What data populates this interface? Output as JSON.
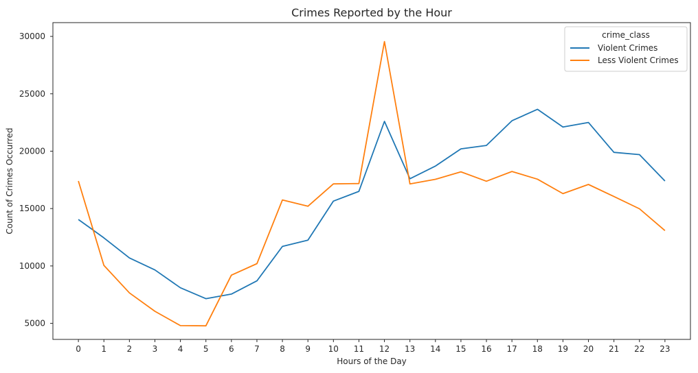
{
  "chart_data": {
    "type": "line",
    "title": "Crimes Reported by the Hour",
    "xlabel": "Hours of the Day",
    "ylabel": "Count of Crimes Occurred",
    "x": [
      0,
      1,
      2,
      3,
      4,
      5,
      6,
      7,
      8,
      9,
      10,
      11,
      12,
      13,
      14,
      15,
      16,
      17,
      18,
      19,
      20,
      21,
      22,
      23
    ],
    "xlim": [
      -1,
      24
    ],
    "ylim": [
      3600,
      31200
    ],
    "yticks": [
      5000,
      10000,
      15000,
      20000,
      25000,
      30000
    ],
    "grid": false,
    "legend": {
      "title": "crime_class",
      "placement": "top-right"
    },
    "series": [
      {
        "name": "Violent Crimes",
        "color": "#1f77b4",
        "values": [
          14050,
          12450,
          10700,
          9650,
          8100,
          7150,
          7550,
          8700,
          11700,
          12250,
          15650,
          16500,
          22600,
          17600,
          18700,
          20200,
          20500,
          22650,
          23650,
          22100,
          22500,
          19900,
          19700,
          17400
        ]
      },
      {
        "name": "Less Violent Crimes",
        "color": "#ff7f0e",
        "values": [
          17400,
          10050,
          7650,
          6050,
          4800,
          4780,
          9200,
          10200,
          15750,
          15200,
          17150,
          17180,
          29550,
          17150,
          17550,
          18200,
          17380,
          18230,
          17560,
          16300,
          17100,
          16050,
          14980,
          13080
        ]
      }
    ]
  }
}
